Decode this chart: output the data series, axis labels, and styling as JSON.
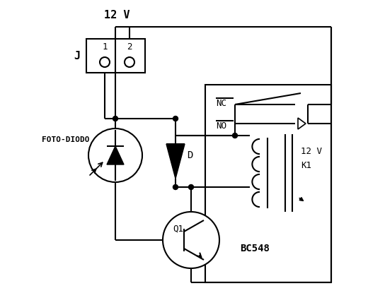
{
  "bg_color": "#ffffff",
  "lw": 1.5,
  "top_label": "12 V",
  "relay_label1": "12 V",
  "relay_label2": "K1",
  "foto_label": "FOTO-DIODO",
  "J_label": "J",
  "pin1_label": "1",
  "pin2_label": "2",
  "D_label": "D",
  "Q1_label": "Q1",
  "bc548_label": "BC548",
  "NC_label": "NC",
  "NO_label": "NO"
}
